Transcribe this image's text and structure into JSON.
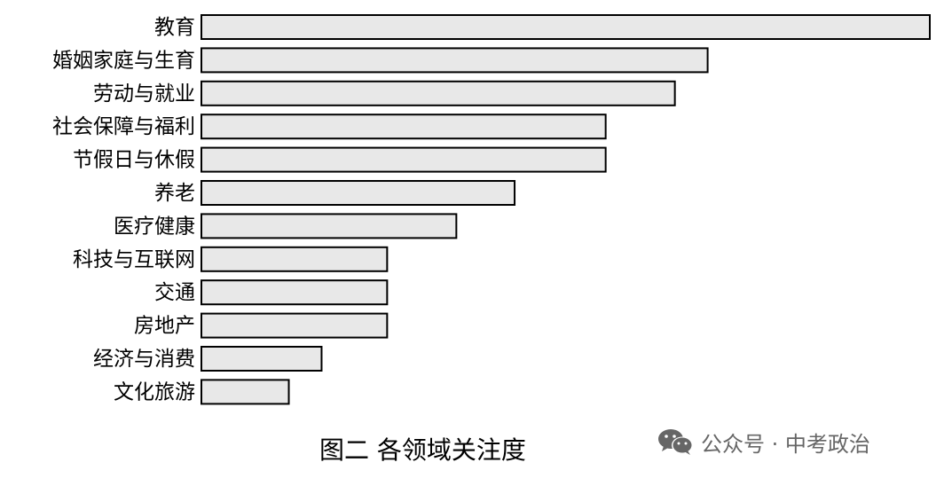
{
  "chart_data": {
    "type": "bar",
    "orientation": "horizontal",
    "categories": [
      "教育",
      "婚姻家庭与生育",
      "劳动与就业",
      "社会保障与福利",
      "节假日与休假",
      "养老",
      "医疗健康",
      "科技与互联网",
      "交通",
      "房地产",
      "经济与消费",
      "文化旅游"
    ],
    "values": [
      100,
      69.5,
      65,
      55.5,
      55.5,
      43,
      35,
      25.5,
      25.5,
      25.5,
      16.5,
      12
    ],
    "xlim": [
      0,
      100
    ],
    "title": "",
    "xlabel": "",
    "ylabel": "",
    "grid": false,
    "legend": "none",
    "bar_fill": "#e8e8e8",
    "bar_stroke": "#000000"
  },
  "caption": "图二  各领域关注度",
  "watermark": {
    "text": "公众号 · 中考政治",
    "icon": "wechat-icon",
    "color": "#666666"
  }
}
